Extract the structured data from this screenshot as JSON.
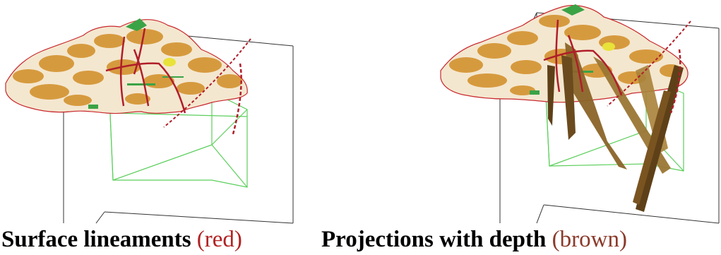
{
  "captions": {
    "left": {
      "main": "Surface lineaments",
      "qualifier": "(red)"
    },
    "right": {
      "main": "Projections with depth",
      "qualifier": "(brown)"
    }
  },
  "colors": {
    "surface_fill": "#d69a3e",
    "surface_outline": "#c8282e",
    "lineament_red": "#b01e2a",
    "projection_brown": "#6b4a1e",
    "projection_brown_light": "#9a7634",
    "green_marks": "#3aa346",
    "inner_box_green": "#5ccf5c",
    "outer_box": "#333333",
    "yellow_mark": "#e8e23a",
    "qualifier_text": "#b22222"
  }
}
